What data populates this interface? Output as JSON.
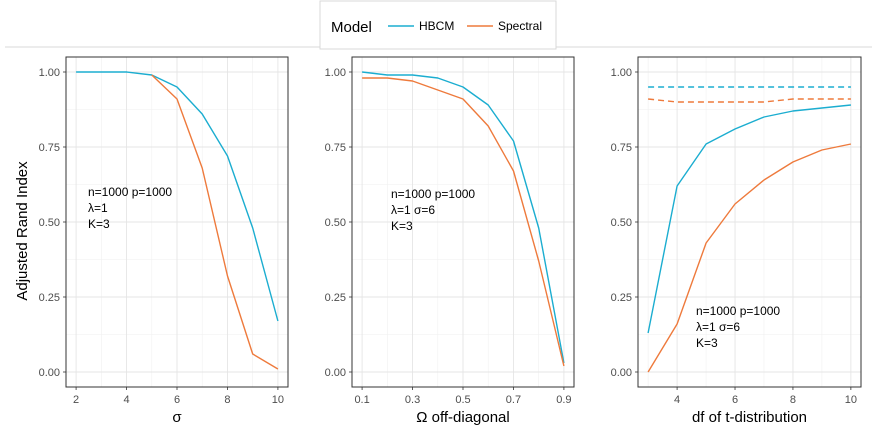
{
  "legend": {
    "title": "Model",
    "items": [
      {
        "label": "HBCM",
        "color": "#1BADD0"
      },
      {
        "label": "Spectral",
        "color": "#EE7A3C"
      }
    ]
  },
  "shared_ylabel": "Adjusted Rand Index",
  "chart_data": [
    {
      "type": "line",
      "xlabel": "σ",
      "ylabel": "Adjusted Rand Index",
      "xlim": [
        1.6,
        10.4
      ],
      "ylim": [
        -0.05,
        1.05
      ],
      "xticks": [
        2,
        4,
        6,
        8,
        10
      ],
      "xtick_labels": [
        "2",
        "4",
        "6",
        "8",
        "10"
      ],
      "yticks": [
        0.0,
        0.25,
        0.5,
        0.75,
        1.0
      ],
      "ytick_labels": [
        "0.00",
        "0.25",
        "0.50",
        "0.75",
        "1.00"
      ],
      "annotation": [
        "n=1000 p=1000",
        "λ=1",
        "K=3"
      ],
      "series": [
        {
          "name": "HBCM",
          "color": "#1BADD0",
          "style": "solid",
          "x": [
            2,
            3,
            4,
            5,
            6,
            7,
            8,
            9,
            10
          ],
          "y": [
            1.0,
            1.0,
            1.0,
            0.99,
            0.95,
            0.86,
            0.72,
            0.48,
            0.17
          ]
        },
        {
          "name": "Spectral",
          "color": "#EE7A3C",
          "style": "solid",
          "x": [
            5,
            6,
            7,
            8,
            9,
            10
          ],
          "y": [
            0.99,
            0.91,
            0.68,
            0.32,
            0.06,
            0.01
          ]
        }
      ]
    },
    {
      "type": "line",
      "xlabel": "Ω off-diagonal",
      "ylabel": "",
      "xlim": [
        0.06,
        0.94
      ],
      "ylim": [
        -0.05,
        1.05
      ],
      "xticks": [
        0.1,
        0.3,
        0.5,
        0.7,
        0.9
      ],
      "xtick_labels": [
        "0.1",
        "0.3",
        "0.5",
        "0.7",
        "0.9"
      ],
      "yticks": [
        0.0,
        0.25,
        0.5,
        0.75,
        1.0
      ],
      "ytick_labels": [
        "0.00",
        "0.25",
        "0.50",
        "0.75",
        "1.00"
      ],
      "annotation": [
        "n=1000 p=1000",
        "λ=1 σ=6",
        "K=3"
      ],
      "series": [
        {
          "name": "HBCM",
          "color": "#1BADD0",
          "style": "solid",
          "x": [
            0.1,
            0.2,
            0.3,
            0.4,
            0.5,
            0.6,
            0.7,
            0.8,
            0.9
          ],
          "y": [
            1.0,
            0.99,
            0.99,
            0.98,
            0.95,
            0.89,
            0.77,
            0.48,
            0.03
          ]
        },
        {
          "name": "Spectral",
          "color": "#EE7A3C",
          "style": "solid",
          "x": [
            0.1,
            0.2,
            0.3,
            0.4,
            0.5,
            0.6,
            0.7,
            0.8,
            0.9
          ],
          "y": [
            0.98,
            0.98,
            0.97,
            0.94,
            0.91,
            0.82,
            0.67,
            0.37,
            0.02
          ]
        }
      ]
    },
    {
      "type": "line",
      "xlabel": "df of t-distribution",
      "ylabel": "",
      "xlim": [
        2.65,
        10.35
      ],
      "ylim": [
        -0.05,
        1.05
      ],
      "xticks": [
        4,
        6,
        8,
        10
      ],
      "xtick_labels": [
        "4",
        "6",
        "8",
        "10"
      ],
      "yticks": [
        0.0,
        0.25,
        0.5,
        0.75,
        1.0
      ],
      "ytick_labels": [
        "0.00",
        "0.25",
        "0.50",
        "0.75",
        "1.00"
      ],
      "annotation": [
        "n=1000 p=1000",
        "λ=1 σ=6",
        "K=3"
      ],
      "series": [
        {
          "name": "HBCM",
          "color": "#1BADD0",
          "style": "solid",
          "x": [
            3,
            4,
            5,
            6,
            7,
            8,
            9,
            10
          ],
          "y": [
            0.13,
            0.62,
            0.76,
            0.81,
            0.85,
            0.87,
            0.88,
            0.89
          ]
        },
        {
          "name": "Spectral",
          "color": "#EE7A3C",
          "style": "solid",
          "x": [
            3,
            4,
            5,
            6,
            7,
            8,
            9,
            10
          ],
          "y": [
            0.0,
            0.16,
            0.43,
            0.56,
            0.64,
            0.7,
            0.74,
            0.76
          ]
        },
        {
          "name": "HBCM",
          "color": "#1BADD0",
          "style": "dashed",
          "x": [
            3,
            4,
            5,
            6,
            7,
            8,
            9,
            10
          ],
          "y": [
            0.95,
            0.95,
            0.95,
            0.95,
            0.95,
            0.95,
            0.95,
            0.95
          ]
        },
        {
          "name": "Spectral",
          "color": "#EE7A3C",
          "style": "dashed",
          "x": [
            3,
            4,
            5,
            6,
            7,
            8,
            9,
            10
          ],
          "y": [
            0.91,
            0.9,
            0.9,
            0.9,
            0.9,
            0.91,
            0.91,
            0.91
          ]
        }
      ]
    }
  ]
}
